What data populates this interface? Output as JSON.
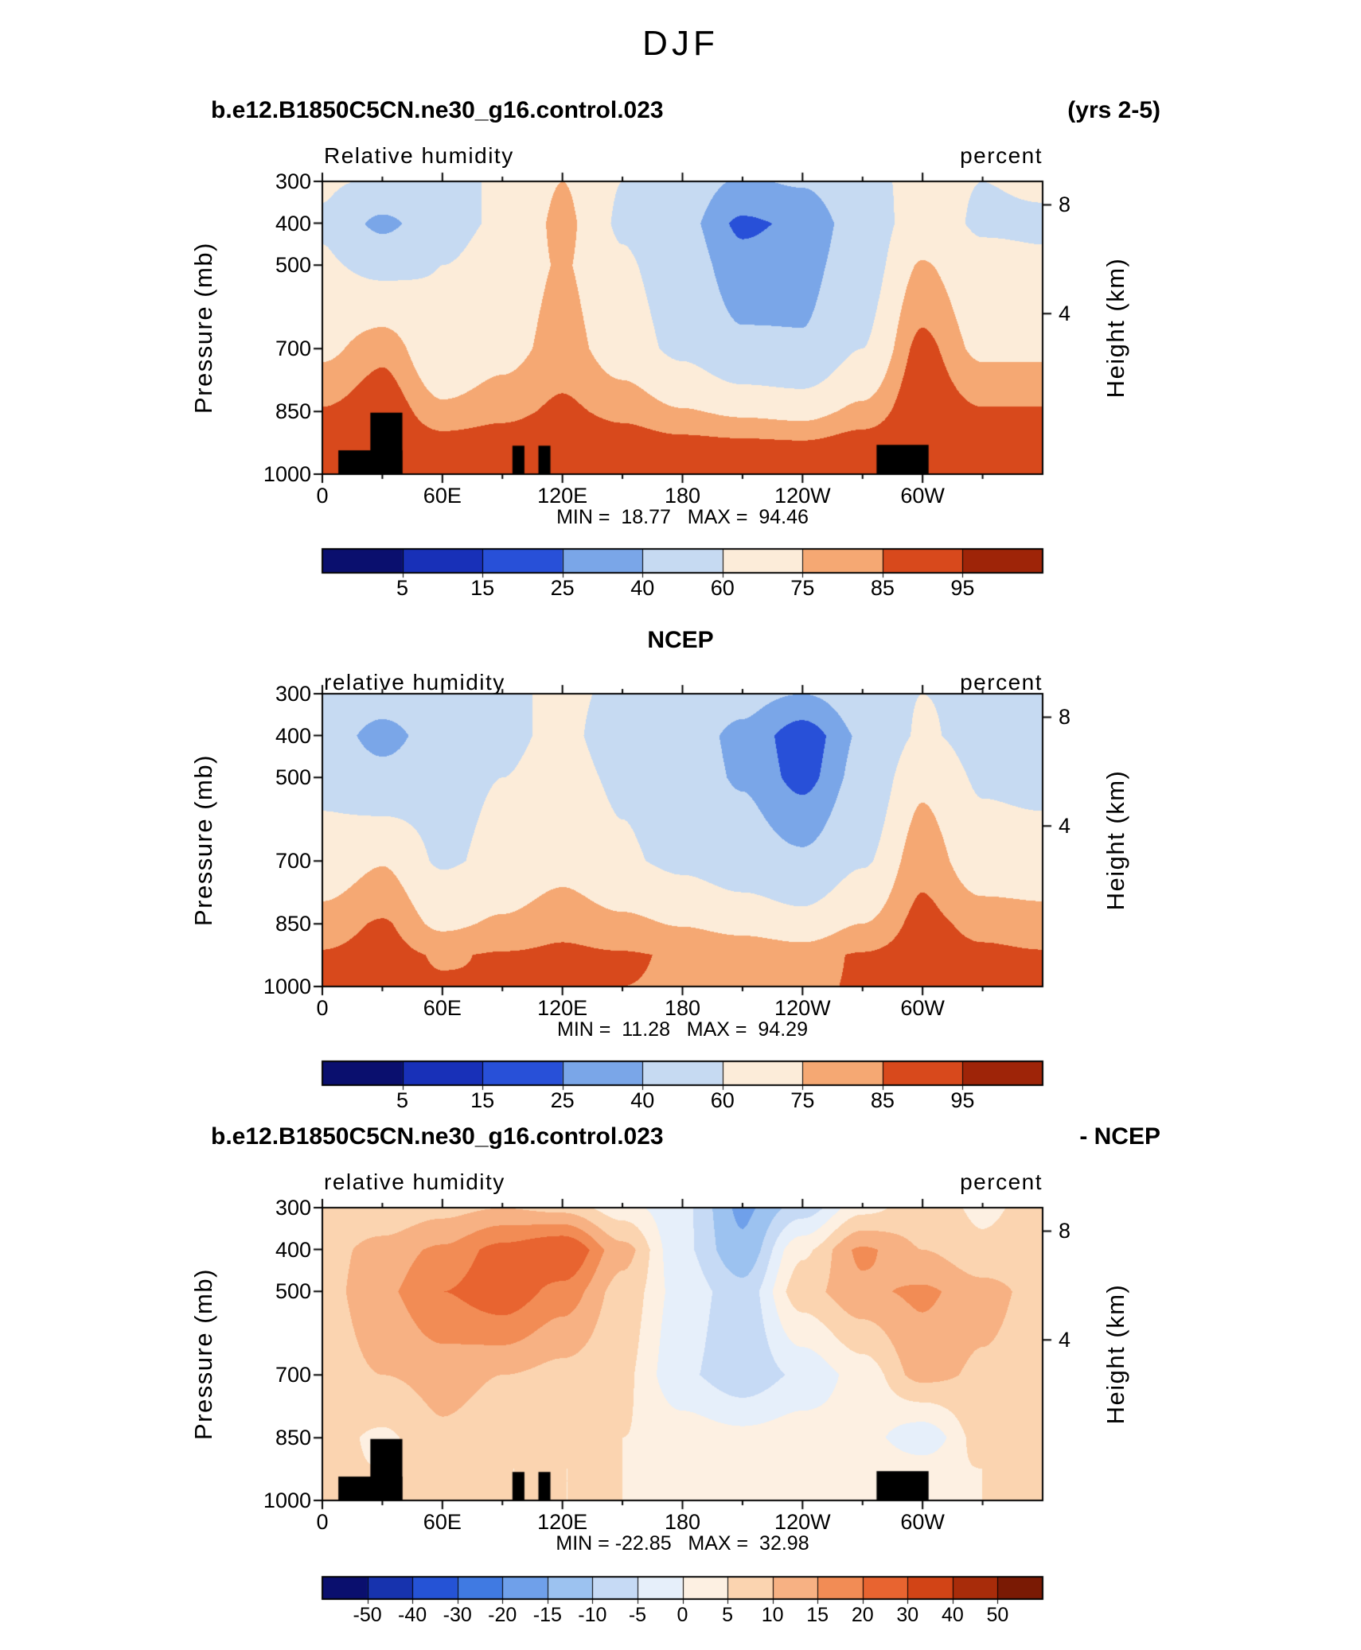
{
  "page": {
    "title": "DJF"
  },
  "chart_data": {
    "type": "heatmap",
    "x_axis": "longitude",
    "y_axis": "pressure_mb",
    "panels": [
      {
        "id": "model",
        "left_title": "b.e12.B1850C5CN.ne30_g16.control.023",
        "right_title": "(yrs 2-5)",
        "field_label": "Relative humidity",
        "units_label": "percent",
        "ylabel_left": "Pressure (mb)",
        "ylabel_right": "Height (km)",
        "stats": "MIN =  18.77   MAX =  94.46",
        "x_ticks": [
          {
            "lon": 0,
            "label": "0"
          },
          {
            "lon": 60,
            "label": "60E"
          },
          {
            "lon": 120,
            "label": "120E"
          },
          {
            "lon": 180,
            "label": "180"
          },
          {
            "lon": 240,
            "label": "120W"
          },
          {
            "lon": 300,
            "label": "60W"
          }
        ],
        "x_minor_step": 30,
        "y_ticks": [
          300,
          400,
          500,
          700,
          850,
          1000
        ],
        "height_ticks": [
          {
            "km": "8",
            "p": 356
          },
          {
            "km": "4",
            "p": 616
          }
        ],
        "levels": [
          5,
          15,
          25,
          40,
          60,
          75,
          85,
          95
        ],
        "colors": [
          "#0a0f6e",
          "#1830b8",
          "#2850d8",
          "#7aa6e8",
          "#c6daf2",
          "#fcecd9",
          "#f5a873",
          "#d8491c",
          "#9e2408"
        ],
        "colorbar_labels": [
          "5",
          "15",
          "25",
          "40",
          "60",
          "75",
          "85",
          "95"
        ],
        "lons": [
          0,
          30,
          60,
          90,
          120,
          150,
          180,
          210,
          240,
          270,
          300,
          330,
          360
        ],
        "pressures": [
          300,
          400,
          500,
          700,
          850,
          925,
          1000
        ],
        "values": [
          [
            62,
            58,
            55,
            62,
            75,
            60,
            50,
            38,
            42,
            55,
            65,
            60,
            62
          ],
          [
            58,
            35,
            55,
            62,
            78,
            58,
            45,
            22,
            28,
            50,
            68,
            58,
            58
          ],
          [
            62,
            55,
            60,
            66,
            76,
            62,
            50,
            30,
            34,
            52,
            76,
            64,
            62
          ],
          [
            72,
            82,
            62,
            70,
            80,
            68,
            56,
            44,
            42,
            60,
            88,
            72,
            72
          ],
          [
            86,
            92,
            78,
            82,
            87,
            82,
            76,
            72,
            70,
            78,
            93,
            86,
            86
          ],
          [
            92,
            94,
            89,
            90,
            92,
            90,
            88,
            87,
            86,
            90,
            94,
            92,
            92
          ],
          [
            90,
            93,
            91,
            90,
            91,
            90,
            88,
            88,
            87,
            90,
            92,
            90,
            90
          ]
        ],
        "topography": [
          {
            "lon": [
              8,
              40
            ],
            "ptop": 943
          },
          {
            "lon": [
              24,
              40
            ],
            "ptop": 853
          },
          {
            "lon": [
              95,
              101
            ],
            "ptop": 932
          },
          {
            "lon": [
              108,
              114
            ],
            "ptop": 932
          },
          {
            "lon": [
              277,
              303
            ],
            "ptop": 930
          }
        ]
      },
      {
        "id": "ncep",
        "center_title": "NCEP",
        "field_label": "relative humidity",
        "units_label": "percent",
        "ylabel_left": "Pressure (mb)",
        "ylabel_right": "Height (km)",
        "stats": "MIN =  11.28   MAX =  94.29",
        "x_ticks": [
          {
            "lon": 0,
            "label": "0"
          },
          {
            "lon": 60,
            "label": "60E"
          },
          {
            "lon": 120,
            "label": "120E"
          },
          {
            "lon": 180,
            "label": "180"
          },
          {
            "lon": 240,
            "label": "120W"
          },
          {
            "lon": 300,
            "label": "60W"
          }
        ],
        "x_minor_step": 30,
        "y_ticks": [
          300,
          400,
          500,
          700,
          850,
          1000
        ],
        "height_ticks": [
          {
            "km": "8",
            "p": 356
          },
          {
            "km": "4",
            "p": 616
          }
        ],
        "levels": [
          5,
          15,
          25,
          40,
          60,
          75,
          85,
          95
        ],
        "colors": [
          "#0a0f6e",
          "#1830b8",
          "#2850d8",
          "#7aa6e8",
          "#c6daf2",
          "#fcecd9",
          "#f5a873",
          "#d8491c",
          "#9e2408"
        ],
        "colorbar_labels": [
          "5",
          "15",
          "25",
          "40",
          "60",
          "75",
          "85",
          "95"
        ],
        "lons": [
          0,
          30,
          60,
          90,
          120,
          150,
          180,
          210,
          240,
          270,
          300,
          330,
          360
        ],
        "pressures": [
          300,
          400,
          500,
          700,
          850,
          925,
          1000
        ],
        "values": [
          [
            55,
            52,
            55,
            58,
            62,
            58,
            52,
            46,
            40,
            50,
            60,
            56,
            55
          ],
          [
            52,
            32,
            52,
            58,
            62,
            55,
            48,
            36,
            16,
            42,
            62,
            54,
            52
          ],
          [
            56,
            48,
            55,
            60,
            64,
            58,
            50,
            38,
            20,
            46,
            72,
            58,
            56
          ],
          [
            66,
            74,
            58,
            64,
            70,
            62,
            56,
            50,
            44,
            58,
            82,
            66,
            66
          ],
          [
            80,
            86,
            72,
            77,
            82,
            78,
            74,
            70,
            66,
            75,
            88,
            82,
            80
          ],
          [
            86,
            89,
            84,
            86,
            87,
            86,
            84,
            83,
            81,
            86,
            90,
            87,
            86
          ],
          [
            85,
            88,
            86,
            85,
            86,
            85,
            84,
            84,
            83,
            86,
            88,
            86,
            85
          ]
        ],
        "topography": []
      },
      {
        "id": "model-minus-ncep",
        "left_title": "b.e12.B1850C5CN.ne30_g16.control.023",
        "right_title": "- NCEP",
        "field_label": "relative humidity",
        "units_label": "percent",
        "ylabel_left": "Pressure (mb)",
        "ylabel_right": "Height (km)",
        "stats": "MIN = -22.85   MAX =  32.98",
        "x_ticks": [
          {
            "lon": 0,
            "label": "0"
          },
          {
            "lon": 60,
            "label": "60E"
          },
          {
            "lon": 120,
            "label": "120E"
          },
          {
            "lon": 180,
            "label": "180"
          },
          {
            "lon": 240,
            "label": "120W"
          },
          {
            "lon": 300,
            "label": "60W"
          }
        ],
        "x_minor_step": 30,
        "y_ticks": [
          300,
          400,
          500,
          700,
          850,
          1000
        ],
        "height_ticks": [
          {
            "km": "8",
            "p": 356
          },
          {
            "km": "4",
            "p": 616
          }
        ],
        "levels": [
          -50,
          -40,
          -30,
          -20,
          -15,
          -10,
          -5,
          0,
          5,
          10,
          15,
          20,
          30,
          40,
          50
        ],
        "colors": [
          "#0a0f6e",
          "#1733ae",
          "#2553d6",
          "#407ae2",
          "#6fa0ea",
          "#9cc2f0",
          "#c6daf5",
          "#e6effa",
          "#fdf0e2",
          "#fbd4b0",
          "#f7b183",
          "#f28c55",
          "#e86430",
          "#d24416",
          "#a82c0a",
          "#7a1a04"
        ],
        "colorbar_labels": [
          "-50",
          "-40",
          "-30",
          "-20",
          "-15",
          "-10",
          "-5",
          "0",
          "5",
          "10",
          "15",
          "20",
          "30",
          "40",
          "50"
        ],
        "lons": [
          0,
          30,
          60,
          90,
          120,
          150,
          180,
          210,
          240,
          270,
          300,
          330,
          360
        ],
        "pressures": [
          300,
          400,
          500,
          700,
          850,
          925,
          1000
        ],
        "values": [
          [
            7,
            6,
            8,
            10,
            8,
            2,
            -4,
            -16,
            -8,
            3,
            8,
            4,
            7
          ],
          [
            8,
            12,
            16,
            22,
            26,
            12,
            -4,
            -14,
            4,
            16,
            10,
            6,
            8
          ],
          [
            8,
            14,
            20,
            24,
            18,
            8,
            -2,
            -8,
            8,
            14,
            16,
            12,
            8
          ],
          [
            7,
            10,
            12,
            10,
            8,
            6,
            -4,
            -9,
            -4,
            2,
            12,
            9,
            7
          ],
          [
            7,
            4,
            9,
            7,
            6,
            5,
            3,
            2,
            3,
            2,
            -4,
            7,
            7
          ],
          [
            6,
            5,
            7,
            5,
            5,
            5,
            4,
            4,
            5,
            4,
            3,
            5,
            6
          ],
          [
            5,
            5,
            6,
            5,
            5,
            5,
            4,
            4,
            4,
            4,
            3,
            5,
            5
          ]
        ],
        "topography": [
          {
            "lon": [
              8,
              40
            ],
            "ptop": 943
          },
          {
            "lon": [
              24,
              40
            ],
            "ptop": 853
          },
          {
            "lon": [
              95,
              101
            ],
            "ptop": 932
          },
          {
            "lon": [
              108,
              114
            ],
            "ptop": 932
          },
          {
            "lon": [
              277,
              303
            ],
            "ptop": 930
          }
        ]
      }
    ]
  }
}
